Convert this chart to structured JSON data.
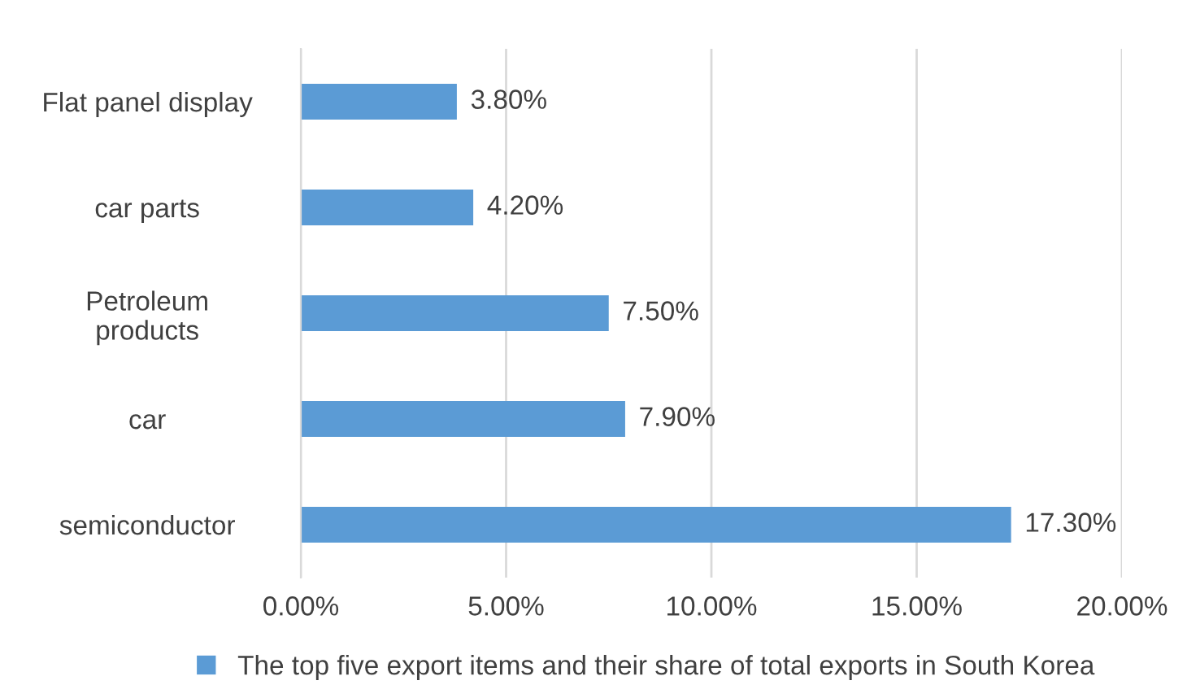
{
  "chart_data": {
    "type": "bar",
    "orientation": "horizontal",
    "categories": [
      "Flat panel display",
      "car parts",
      "Petroleum\nproducts",
      "car",
      "semiconductor"
    ],
    "series": [
      {
        "name": "The top five export items and their share of total exports in South Korea",
        "color": "#5b9bd5",
        "values": [
          3.8,
          4.2,
          7.5,
          7.9,
          17.3
        ],
        "value_labels": [
          "3.80%",
          "4.20%",
          "7.50%",
          "7.90%",
          "17.30%"
        ]
      }
    ],
    "xlim": [
      0,
      20
    ],
    "xticks": [
      {
        "value": 0,
        "label": "0.00%"
      },
      {
        "value": 5,
        "label": "5.00%"
      },
      {
        "value": 10,
        "label": "10.00%"
      },
      {
        "value": 15,
        "label": "15.00%"
      },
      {
        "value": 20,
        "label": "20.00%"
      }
    ],
    "grid": "x",
    "legend": "bottom"
  }
}
